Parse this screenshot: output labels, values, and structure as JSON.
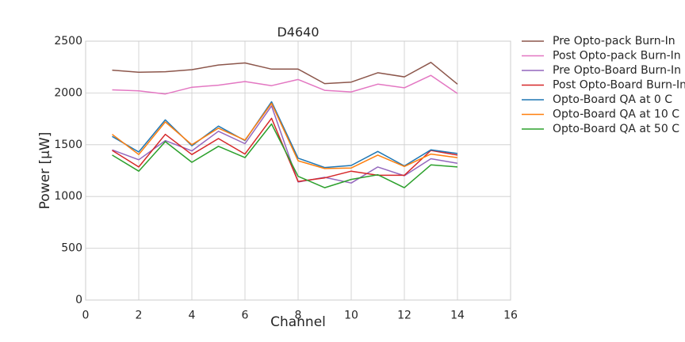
{
  "chart_data": {
    "type": "line",
    "title": "D4640",
    "xlabel": "Channel",
    "ylabel": "Power [μW]",
    "xlim": [
      0,
      16
    ],
    "ylim": [
      0,
      2500
    ],
    "xticks": [
      0,
      2,
      4,
      6,
      8,
      10,
      12,
      14,
      16
    ],
    "yticks": [
      0,
      500,
      1000,
      1500,
      2000,
      2500
    ],
    "grid": true,
    "legend_position": "outside right",
    "x": [
      1,
      2,
      3,
      4,
      5,
      6,
      7,
      8,
      9,
      10,
      11,
      12,
      13,
      14
    ],
    "series": [
      {
        "name": "Pre Opto-pack Burn-In",
        "color": "#8c564b",
        "values": [
          2220,
          2200,
          2205,
          2225,
          2270,
          2290,
          2230,
          2230,
          2090,
          2105,
          2195,
          2155,
          2295,
          2085
        ]
      },
      {
        "name": "Post Opto-pack Burn-In",
        "color": "#e377c2",
        "values": [
          2030,
          2020,
          1990,
          2055,
          2075,
          2110,
          2070,
          2130,
          2025,
          2010,
          2085,
          2050,
          2170,
          1995
        ]
      },
      {
        "name": "Pre Opto-Board Burn-In",
        "color": "#9467bd",
        "values": [
          1450,
          1355,
          1540,
          1440,
          1630,
          1510,
          1875,
          1140,
          1185,
          1130,
          1285,
          1200,
          1365,
          1320
        ]
      },
      {
        "name": "Post Opto-Board Burn-In",
        "color": "#d62728",
        "values": [
          1445,
          1285,
          1600,
          1405,
          1560,
          1410,
          1755,
          1145,
          1180,
          1245,
          1205,
          1205,
          1445,
          1400
        ]
      },
      {
        "name": "Opto-Board QA at 0 C",
        "color": "#1f77b4",
        "values": [
          1580,
          1430,
          1740,
          1490,
          1680,
          1540,
          1915,
          1370,
          1280,
          1300,
          1435,
          1295,
          1450,
          1415
        ]
      },
      {
        "name": "Opto-Board QA at 10 C",
        "color": "#ff7f0e",
        "values": [
          1600,
          1405,
          1720,
          1500,
          1660,
          1545,
          1900,
          1345,
          1270,
          1275,
          1400,
          1290,
          1410,
          1375
        ]
      },
      {
        "name": "Opto-Board QA at 50 C",
        "color": "#2ca02c",
        "values": [
          1400,
          1245,
          1530,
          1330,
          1485,
          1375,
          1700,
          1195,
          1085,
          1165,
          1210,
          1085,
          1305,
          1285
        ]
      }
    ]
  }
}
